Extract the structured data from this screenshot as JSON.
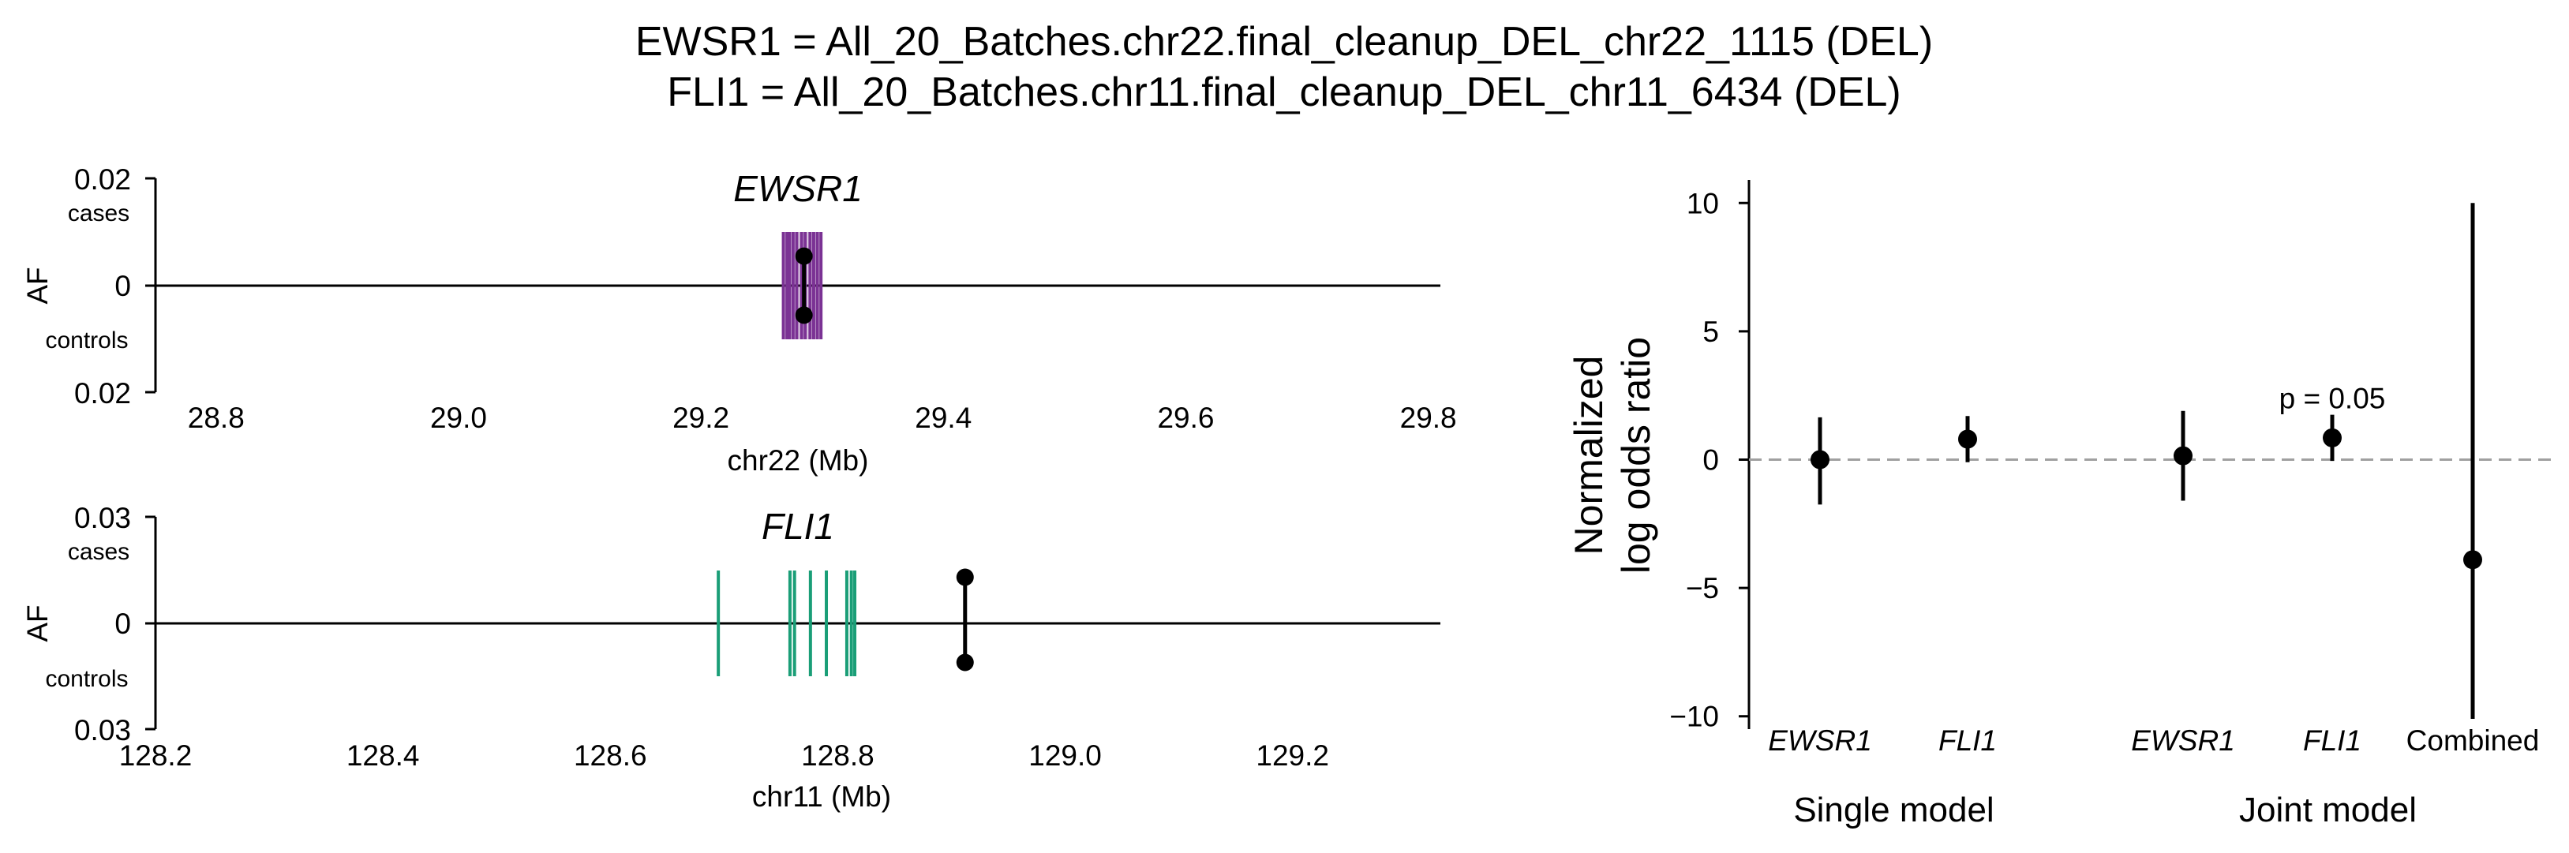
{
  "title_lines": [
    "EWSR1 = All_20_Batches.chr22.final_cleanup_DEL_chr22_1115 (DEL)",
    "FLI1 = All_20_Batches.chr11.final_cleanup_DEL_chr11_6434 (DEL)"
  ],
  "chart_data": [
    {
      "type": "scatter",
      "panel": "EWSR1 locus",
      "title": "EWSR1",
      "xlabel": "chr22 (Mb)",
      "ylabel": "AF",
      "upper_label": "cases",
      "lower_label": "controls",
      "xlim": [
        28.75,
        29.81
      ],
      "x_ticks": [
        "28.8",
        "29.0",
        "29.2",
        "29.4",
        "29.6",
        "29.8"
      ],
      "y_ticks": [
        "0.02",
        "0",
        "0.02"
      ],
      "ylim": [
        -0.02,
        0.02
      ],
      "gene_color": "#7b3294",
      "gene_span_mb": [
        29.268,
        29.299
      ],
      "gene_exons_mb": [
        29.268,
        29.271,
        29.273,
        29.276,
        29.279,
        29.283,
        29.286,
        29.29,
        29.293,
        29.296,
        29.299
      ],
      "variant": {
        "pos_mb": 29.285,
        "case_af": 0.0055,
        "control_af": -0.0055
      }
    },
    {
      "type": "scatter",
      "panel": "FLI1 locus",
      "title": "FLI1",
      "xlabel": "chr11 (Mb)",
      "ylabel": "AF",
      "upper_label": "cases",
      "lower_label": "controls",
      "xlim": [
        128.2,
        129.33
      ],
      "x_ticks": [
        "128.2",
        "128.4",
        "128.6",
        "128.8",
        "129.0",
        "129.2"
      ],
      "y_ticks": [
        "0.03",
        "0",
        "0.03"
      ],
      "ylim": [
        -0.03,
        0.03
      ],
      "gene_color": "#1a9e77",
      "gene_exons_mb": [
        128.695,
        128.758,
        128.762,
        128.776,
        128.79,
        128.808,
        128.812,
        128.815
      ],
      "variant": {
        "pos_mb": 128.912,
        "case_af": 0.013,
        "control_af": -0.011
      }
    },
    {
      "type": "scatter",
      "panel": "association",
      "ylabel_lines": [
        "Normalized",
        "log odds ratio"
      ],
      "ylim": [
        -10.5,
        10.9
      ],
      "y_ticks": [
        10,
        5,
        0,
        -5,
        -10
      ],
      "y_tick_labels": [
        "10",
        "5",
        "0",
        "−5",
        "−10"
      ],
      "reference_line": 0,
      "categories": [
        "EWSR1",
        "FLI1",
        "EWSR1",
        "FLI1",
        "Combined"
      ],
      "italic_categories": [
        true,
        true,
        true,
        true,
        false
      ],
      "groups": [
        {
          "label": "Single model",
          "members": [
            0,
            1
          ]
        },
        {
          "label": "Joint model",
          "members": [
            2,
            3,
            4
          ]
        }
      ],
      "estimates": [
        0.0,
        0.8,
        0.15,
        0.85,
        -3.9
      ],
      "ci_low": [
        -1.75,
        -0.1,
        -1.6,
        -0.05,
        -10.1
      ],
      "ci_high": [
        1.65,
        1.7,
        1.9,
        1.75,
        10.0
      ],
      "annotation": {
        "text": "p = 0.05",
        "category_index": 3,
        "y": 2.4
      }
    }
  ]
}
